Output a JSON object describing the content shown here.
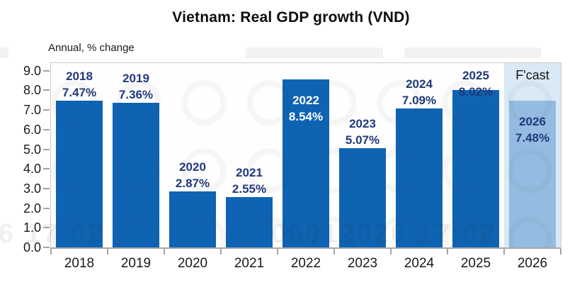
{
  "title": "Vietnam: Real GDP growth (VND)",
  "subtitle": "Annual, % change",
  "forecast_label": "F'cast",
  "watermark": {
    "main": "06012026 17:02",
    "left": "6 17:02"
  },
  "colors": {
    "bar": "#0f63b3",
    "forecast_bar": "#94bce1",
    "forecast_band": "#d9e9f6",
    "label_navy": "#203a7c",
    "label_white": "#ffffff",
    "axis_text": "#1a1a1a"
  },
  "chart_data": {
    "type": "bar",
    "title": "Vietnam: Real GDP growth (VND)",
    "ylabel": "Annual, % change",
    "xlabel": "",
    "categories": [
      "2018",
      "2019",
      "2020",
      "2021",
      "2022",
      "2023",
      "2024",
      "2025",
      "2026"
    ],
    "values": [
      7.47,
      7.36,
      2.87,
      2.55,
      8.54,
      5.07,
      7.09,
      8.02,
      7.48
    ],
    "value_labels": [
      "7.47%",
      "7.36%",
      "2.87%",
      "2.55%",
      "8.54%",
      "5.07%",
      "7.09%",
      "8.02%",
      "7.48%"
    ],
    "ylim": [
      0,
      9
    ],
    "ytick_step": 1.0,
    "ytick_labels": [
      "0.0",
      "1.0",
      "2.0",
      "3.0",
      "4.0",
      "5.0",
      "6.0",
      "7.0",
      "8.0",
      "9.0"
    ],
    "grid": false,
    "legend": "none",
    "forecast_index": 8,
    "forecast_band_label": "F'cast",
    "label_inside": [
      4,
      8
    ],
    "label_white": [
      4
    ]
  }
}
